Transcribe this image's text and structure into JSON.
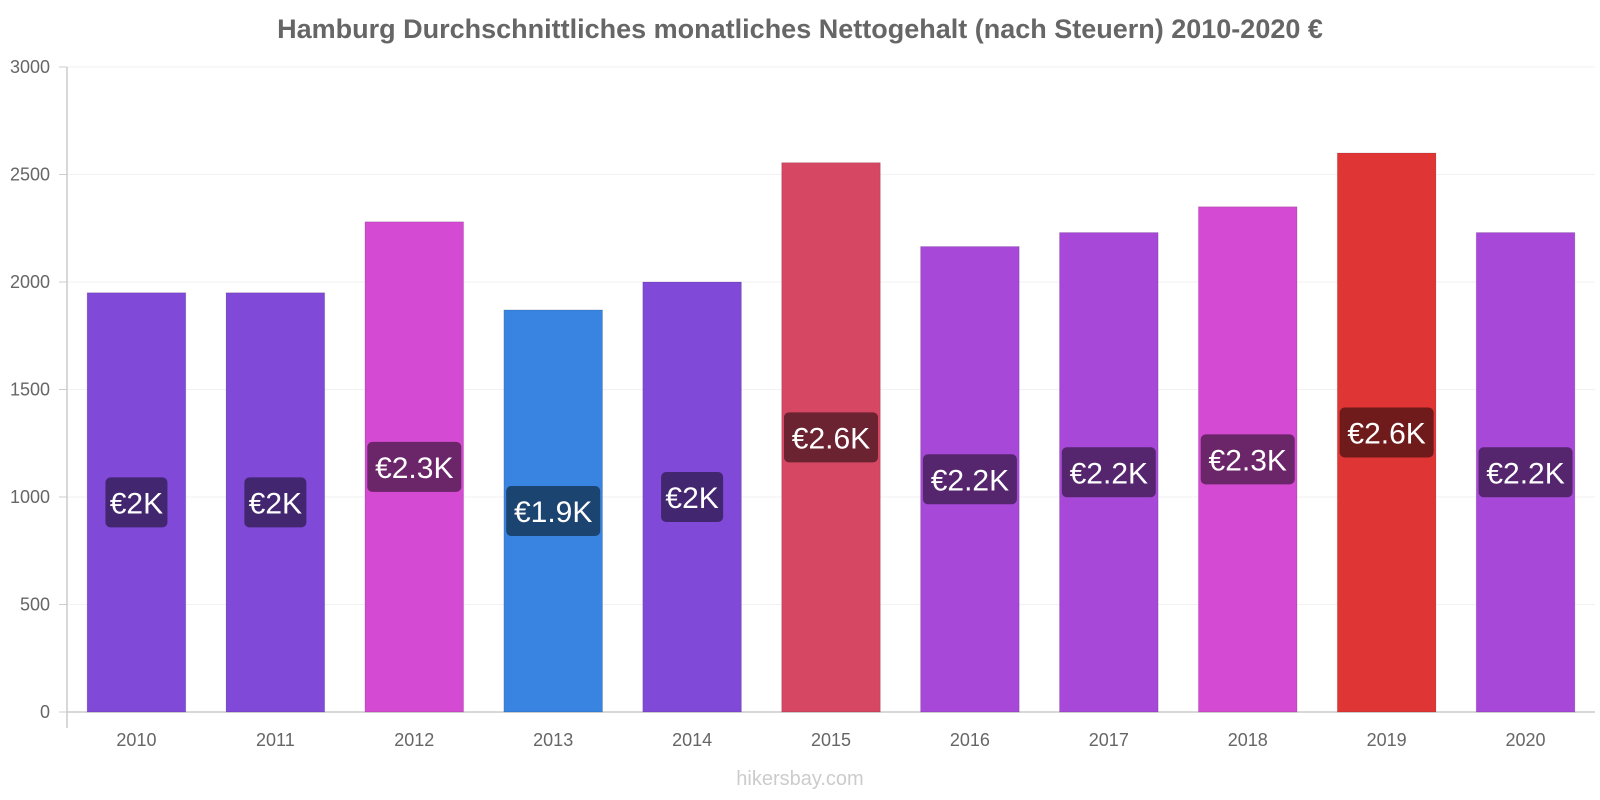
{
  "chart_data": {
    "type": "bar",
    "title": "Hamburg Durchschnittliches monatliches Nettogehalt (nach Steuern) 2010-2020 €",
    "xlabel": "",
    "ylabel": "",
    "categories": [
      "2010",
      "2011",
      "2012",
      "2013",
      "2014",
      "2015",
      "2016",
      "2017",
      "2018",
      "2019",
      "2020"
    ],
    "values": [
      1950,
      1950,
      2280,
      1870,
      2000,
      2555,
      2165,
      2230,
      2350,
      2600,
      2230
    ],
    "data_labels": [
      "€2K",
      "€2K",
      "€2.3K",
      "€1.9K",
      "€2K",
      "€2.6K",
      "€2.2K",
      "€2.2K",
      "€2.3K",
      "€2.6K",
      "€2.2K"
    ],
    "bar_colors": [
      "#8049d8",
      "#8049d8",
      "#d44ad2",
      "#3884e0",
      "#8049d8",
      "#d64763",
      "#a748d8",
      "#a748d8",
      "#d44ad2",
      "#e03535",
      "#a748d8"
    ],
    "label_bg_colors": [
      "#432670",
      "#432670",
      "#6b2569",
      "#1c4470",
      "#432670",
      "#6b2331",
      "#55266e",
      "#55266e",
      "#6b2569",
      "#701b1b",
      "#55266e"
    ],
    "ylim": [
      0,
      3000
    ],
    "yticks": [
      0,
      500,
      1000,
      1500,
      2000,
      2500,
      3000
    ],
    "grid": true,
    "legend": "none"
  },
  "source": "hikersbay.com"
}
